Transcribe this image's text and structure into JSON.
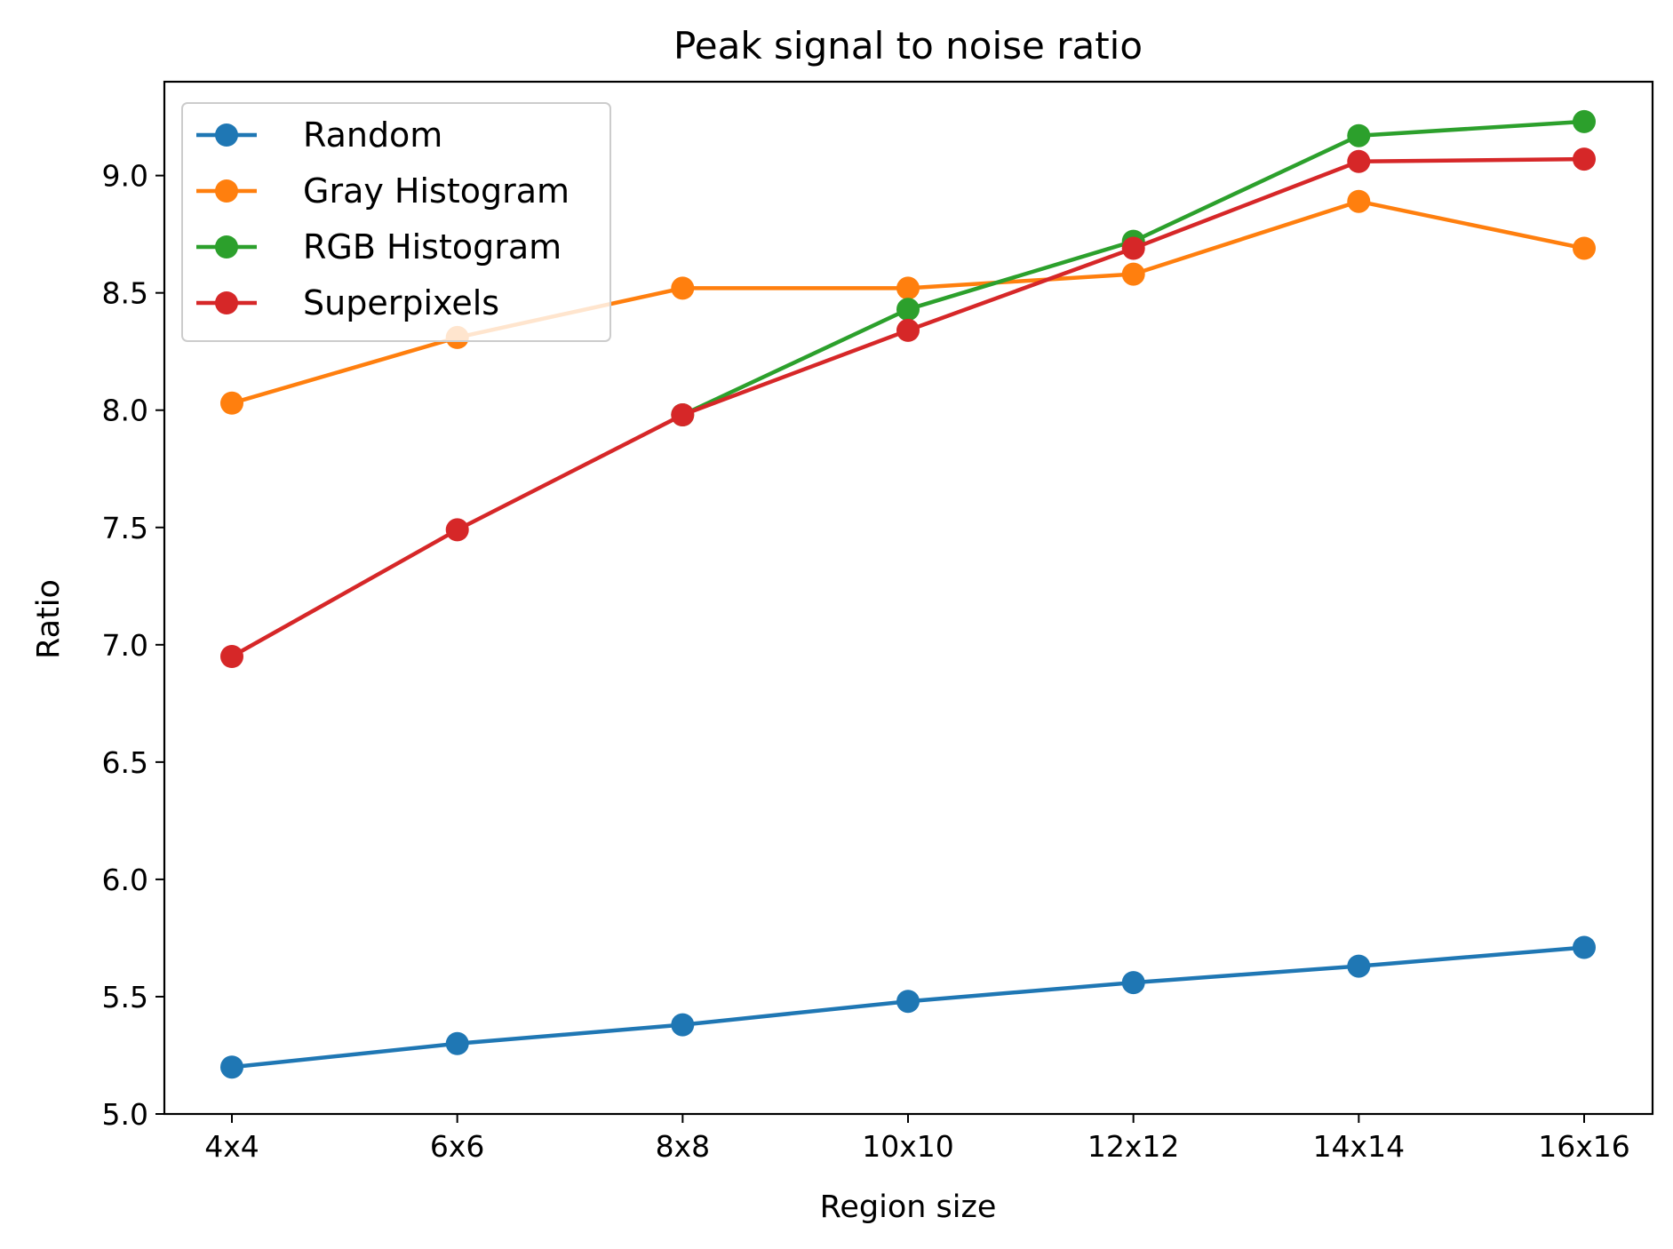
{
  "chart_data": {
    "type": "line",
    "title": "Peak signal to noise ratio",
    "xlabel": "Region size",
    "ylabel": "Ratio",
    "categories": [
      "4x4",
      "6x6",
      "8x8",
      "10x10",
      "12x12",
      "14x14",
      "16x16"
    ],
    "ylim": [
      5.0,
      9.4
    ],
    "yticks": [
      5.0,
      5.5,
      6.0,
      6.5,
      7.0,
      7.5,
      8.0,
      8.5,
      9.0
    ],
    "ytick_labels": [
      "5.0",
      "5.5",
      "6.0",
      "6.5",
      "7.0",
      "7.5",
      "8.0",
      "8.5",
      "9.0"
    ],
    "grid": false,
    "legend_position": "top-left",
    "series": [
      {
        "name": "Random",
        "color": "#1f77b4",
        "values": [
          5.2,
          5.3,
          5.38,
          5.48,
          5.56,
          5.63,
          5.71
        ]
      },
      {
        "name": "Gray Histogram",
        "color": "#ff7f0e",
        "values": [
          8.03,
          8.31,
          8.52,
          8.52,
          8.58,
          8.89,
          8.69
        ]
      },
      {
        "name": "RGB Histogram",
        "color": "#2ca02c",
        "values": [
          null,
          null,
          7.98,
          8.43,
          8.72,
          9.17,
          9.23
        ]
      },
      {
        "name": "Superpixels",
        "color": "#d62728",
        "values": [
          6.95,
          7.49,
          7.98,
          8.34,
          8.69,
          9.06,
          9.07
        ]
      }
    ]
  }
}
